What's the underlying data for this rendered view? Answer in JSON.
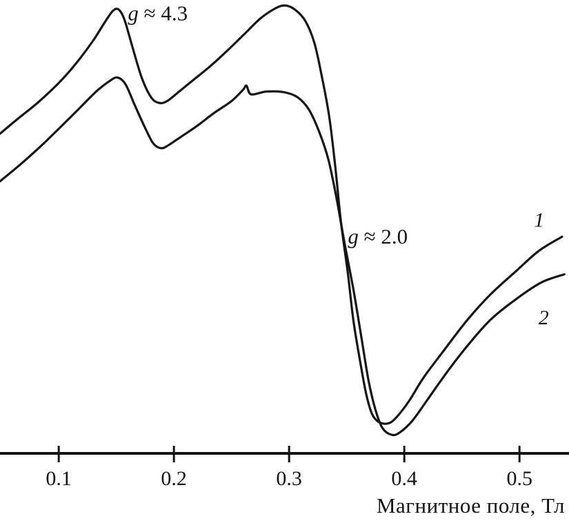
{
  "chart_data": {
    "type": "line",
    "title": "",
    "xlabel": "Магнитное поле, Тл",
    "ylabel": "",
    "grid": false,
    "legend_position": "labels at right end of curves",
    "x_range": [
      0.049,
      0.543
    ],
    "y_range": [
      0,
      100
    ],
    "x_ticks": [
      0.1,
      0.2,
      0.3,
      0.4,
      0.5
    ],
    "x_tick_labels": [
      "0.1",
      "0.2",
      "0.3",
      "0.4",
      "0.5"
    ],
    "line_color": "#151515",
    "axis_color": "#141414",
    "background_color": "#ffffff",
    "series": [
      {
        "name": "1",
        "points": [
          [
            0.049,
            70.5
          ],
          [
            0.064,
            73.7
          ],
          [
            0.082,
            77.4
          ],
          [
            0.1,
            81.7
          ],
          [
            0.115,
            86.0
          ],
          [
            0.13,
            91.1
          ],
          [
            0.14,
            95.1
          ],
          [
            0.147,
            97.6
          ],
          [
            0.152,
            97.9
          ],
          [
            0.157,
            95.7
          ],
          [
            0.164,
            89.6
          ],
          [
            0.172,
            82.9
          ],
          [
            0.18,
            78.6
          ],
          [
            0.187,
            77.3
          ],
          [
            0.194,
            77.7
          ],
          [
            0.204,
            79.7
          ],
          [
            0.217,
            82.4
          ],
          [
            0.232,
            85.5
          ],
          [
            0.247,
            89.0
          ],
          [
            0.262,
            92.7
          ],
          [
            0.275,
            95.9
          ],
          [
            0.287,
            98.0
          ],
          [
            0.296,
            98.8
          ],
          [
            0.305,
            97.9
          ],
          [
            0.314,
            95.4
          ],
          [
            0.322,
            90.5
          ],
          [
            0.329,
            82.4
          ],
          [
            0.335,
            74.0
          ],
          [
            0.34,
            63.4
          ],
          [
            0.345,
            51.1
          ],
          [
            0.351,
            39.7
          ],
          [
            0.356,
            29.0
          ],
          [
            0.362,
            19.8
          ],
          [
            0.367,
            13.0
          ],
          [
            0.372,
            8.7
          ],
          [
            0.378,
            6.9
          ],
          [
            0.386,
            6.6
          ],
          [
            0.393,
            7.9
          ],
          [
            0.404,
            11.5
          ],
          [
            0.417,
            16.8
          ],
          [
            0.435,
            22.9
          ],
          [
            0.455,
            29.5
          ],
          [
            0.475,
            35.1
          ],
          [
            0.497,
            40.2
          ],
          [
            0.517,
            44.7
          ],
          [
            0.537,
            47.8
          ]
        ]
      },
      {
        "name": "2",
        "points": [
          [
            0.049,
            60.0
          ],
          [
            0.067,
            63.8
          ],
          [
            0.085,
            67.9
          ],
          [
            0.1,
            71.6
          ],
          [
            0.116,
            75.6
          ],
          [
            0.132,
            79.7
          ],
          [
            0.144,
            82.1
          ],
          [
            0.151,
            82.9
          ],
          [
            0.158,
            81.4
          ],
          [
            0.166,
            76.8
          ],
          [
            0.175,
            71.8
          ],
          [
            0.182,
            68.4
          ],
          [
            0.189,
            67.3
          ],
          [
            0.196,
            68.1
          ],
          [
            0.206,
            69.8
          ],
          [
            0.22,
            72.2
          ],
          [
            0.235,
            75.1
          ],
          [
            0.25,
            77.7
          ],
          [
            0.26,
            80.2
          ],
          [
            0.263,
            81.1
          ],
          [
            0.267,
            79.2
          ],
          [
            0.28,
            79.8
          ],
          [
            0.295,
            79.7
          ],
          [
            0.307,
            78.6
          ],
          [
            0.317,
            75.9
          ],
          [
            0.326,
            71.0
          ],
          [
            0.334,
            64.9
          ],
          [
            0.341,
            56.5
          ],
          [
            0.348,
            46.6
          ],
          [
            0.356,
            35.9
          ],
          [
            0.363,
            25.2
          ],
          [
            0.369,
            16.0
          ],
          [
            0.375,
            9.6
          ],
          [
            0.381,
            5.6
          ],
          [
            0.389,
            4.1
          ],
          [
            0.396,
            4.6
          ],
          [
            0.407,
            7.2
          ],
          [
            0.42,
            11.8
          ],
          [
            0.437,
            17.9
          ],
          [
            0.456,
            24.1
          ],
          [
            0.475,
            29.5
          ],
          [
            0.497,
            34.0
          ],
          [
            0.519,
            37.7
          ],
          [
            0.539,
            39.5
          ]
        ]
      }
    ],
    "annotations": [
      {
        "name": "g-4-3",
        "italic": "g",
        "text": " ≈ 4.3",
        "x": 0.16,
        "y": 96.6,
        "anchor": "start",
        "font_size": 31
      },
      {
        "name": "g-2-0",
        "italic": "g",
        "text": " ≈ 2.0",
        "x": 0.351,
        "y": 47.3,
        "anchor": "start",
        "font_size": 31
      },
      {
        "name": "curve-1-label",
        "italic": "1",
        "text": "",
        "x": 0.517,
        "y": 51.1,
        "anchor": "middle",
        "font_size": 30
      },
      {
        "name": "curve-2-label",
        "italic": "2",
        "text": "",
        "x": 0.521,
        "y": 29.5,
        "anchor": "middle",
        "font_size": 30
      }
    ]
  }
}
